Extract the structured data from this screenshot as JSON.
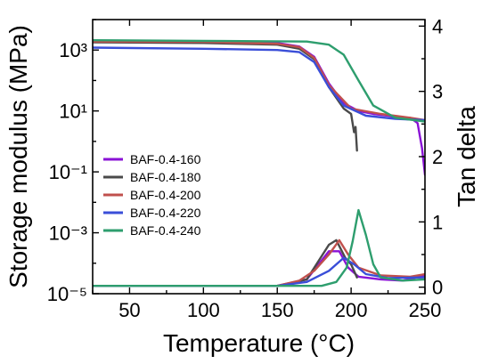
{
  "chart_data": {
    "type": "line",
    "xlabel": "Temperature (°C)",
    "ylabel_left": "Storage modulus (MPa)",
    "ylabel_right": "Tan delta",
    "xlim": [
      25,
      250
    ],
    "ylim_left": [
      1e-05,
      10000
    ],
    "ylim_right": [
      -0.1,
      4.1
    ],
    "left_scale": "log",
    "legend_position": "middle-left",
    "x_ticks": [
      "50",
      "100",
      "150",
      "200",
      "250"
    ],
    "y_left_ticks": [
      "10³",
      "10¹",
      "10⁻¹",
      "10⁻³",
      "10⁻⁵"
    ],
    "y_right_ticks": [
      "0",
      "1",
      "2",
      "3",
      "4"
    ],
    "series": [
      {
        "name": "BAF-0.4-160",
        "color": "#8a12d6",
        "modulus": [
          [
            25,
            2000
          ],
          [
            100,
            1900
          ],
          [
            150,
            1700
          ],
          [
            165,
            1300
          ],
          [
            175,
            600
          ],
          [
            185,
            80
          ],
          [
            195,
            18
          ],
          [
            205,
            10
          ],
          [
            215,
            8
          ],
          [
            225,
            7
          ],
          [
            235,
            5.5
          ],
          [
            240,
            6
          ],
          [
            245,
            4
          ],
          [
            248,
            0.6
          ],
          [
            250,
            0.08
          ]
        ],
        "tan_delta": [
          [
            25,
            0.02
          ],
          [
            150,
            0.02
          ],
          [
            170,
            0.12
          ],
          [
            185,
            0.55
          ],
          [
            192,
            0.55
          ],
          [
            198,
            0.3
          ],
          [
            205,
            0.16
          ],
          [
            220,
            0.12
          ],
          [
            235,
            0.1
          ],
          [
            250,
            0.18
          ]
        ]
      },
      {
        "name": "BAF-0.4-180",
        "color": "#4a4a4a",
        "modulus": [
          [
            25,
            1800
          ],
          [
            100,
            1700
          ],
          [
            150,
            1500
          ],
          [
            165,
            1100
          ],
          [
            175,
            500
          ],
          [
            185,
            60
          ],
          [
            195,
            12
          ],
          [
            200,
            8
          ],
          [
            202,
            2
          ],
          [
            203,
            3
          ],
          [
            204,
            0.5
          ]
        ],
        "tan_delta": [
          [
            25,
            0.02
          ],
          [
            150,
            0.02
          ],
          [
            170,
            0.12
          ],
          [
            185,
            0.65
          ],
          [
            190,
            0.72
          ],
          [
            196,
            0.45
          ],
          [
            200,
            0.35
          ],
          [
            204,
            0.15
          ]
        ]
      },
      {
        "name": "BAF-0.4-200",
        "color": "#c0504d",
        "modulus": [
          [
            25,
            1900
          ],
          [
            100,
            1850
          ],
          [
            150,
            1600
          ],
          [
            165,
            1250
          ],
          [
            175,
            550
          ],
          [
            185,
            70
          ],
          [
            200,
            12
          ],
          [
            220,
            8
          ],
          [
            240,
            6
          ],
          [
            250,
            5
          ]
        ],
        "tan_delta": [
          [
            25,
            0.02
          ],
          [
            150,
            0.02
          ],
          [
            165,
            0.1
          ],
          [
            175,
            0.25
          ],
          [
            185,
            0.5
          ],
          [
            192,
            0.72
          ],
          [
            198,
            0.5
          ],
          [
            205,
            0.3
          ],
          [
            220,
            0.18
          ],
          [
            240,
            0.16
          ],
          [
            250,
            0.2
          ]
        ]
      },
      {
        "name": "BAF-0.4-220",
        "color": "#3a4ed8",
        "modulus": [
          [
            25,
            1200
          ],
          [
            100,
            1100
          ],
          [
            150,
            1000
          ],
          [
            165,
            850
          ],
          [
            175,
            400
          ],
          [
            185,
            60
          ],
          [
            195,
            15
          ],
          [
            210,
            7
          ],
          [
            230,
            5.5
          ],
          [
            250,
            5
          ]
        ],
        "tan_delta": [
          [
            25,
            0.02
          ],
          [
            150,
            0.02
          ],
          [
            170,
            0.08
          ],
          [
            185,
            0.25
          ],
          [
            195,
            0.45
          ],
          [
            202,
            0.35
          ],
          [
            210,
            0.2
          ],
          [
            225,
            0.14
          ],
          [
            250,
            0.15
          ]
        ]
      },
      {
        "name": "BAF-0.4-240",
        "color": "#2e9e6e",
        "modulus": [
          [
            25,
            2100
          ],
          [
            100,
            2000
          ],
          [
            170,
            1900
          ],
          [
            185,
            1500
          ],
          [
            195,
            700
          ],
          [
            205,
            100
          ],
          [
            215,
            15
          ],
          [
            230,
            6
          ],
          [
            250,
            4.5
          ]
        ],
        "tan_delta": [
          [
            25,
            0.02
          ],
          [
            180,
            0.02
          ],
          [
            190,
            0.08
          ],
          [
            197,
            0.3
          ],
          [
            201,
            0.7
          ],
          [
            205,
            1.18
          ],
          [
            210,
            0.8
          ],
          [
            215,
            0.35
          ],
          [
            220,
            0.15
          ],
          [
            235,
            0.1
          ],
          [
            250,
            0.12
          ]
        ]
      }
    ]
  }
}
